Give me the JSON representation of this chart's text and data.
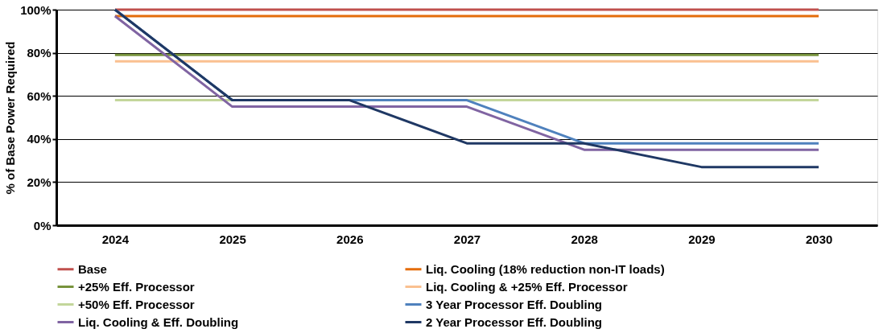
{
  "chart_data": {
    "type": "line",
    "ylabel": "% of Base Power Required",
    "categories": [
      "2024",
      "2025",
      "2026",
      "2027",
      "2028",
      "2029",
      "2030"
    ],
    "ylim": [
      0,
      100
    ],
    "yticks": [
      {
        "value": 0,
        "label": "0%"
      },
      {
        "value": 20,
        "label": "20%"
      },
      {
        "value": 40,
        "label": "40%"
      },
      {
        "value": 60,
        "label": "60%"
      },
      {
        "value": 80,
        "label": "80%"
      },
      {
        "value": 100,
        "label": "100%"
      }
    ],
    "grid": "y",
    "legend": "bottom",
    "marker": "none",
    "line_style": "solid",
    "series": [
      {
        "name": "Base",
        "color": "#c0504d",
        "values": [
          100,
          100,
          100,
          100,
          100,
          100,
          100
        ]
      },
      {
        "name": "Liq. Cooling (18% reduction non-IT loads)",
        "color": "#e46c0a",
        "values": [
          97,
          97,
          97,
          97,
          97,
          97,
          97
        ]
      },
      {
        "name": "+25% Eff. Processor",
        "color": "#77933c",
        "values": [
          79,
          79,
          79,
          79,
          79,
          79,
          79
        ]
      },
      {
        "name": "Liq. Cooling & +25% Eff. Processor",
        "color": "#fac090",
        "values": [
          76,
          76,
          76,
          76,
          76,
          76,
          76
        ]
      },
      {
        "name": "+50% Eff. Processor",
        "color": "#c3d69b",
        "values": [
          58,
          58,
          58,
          58,
          58,
          58,
          58
        ]
      },
      {
        "name": "3 Year Processor Eff. Doubling",
        "color": "#4f81bd",
        "values": [
          100,
          58,
          58,
          58,
          38,
          38,
          38
        ]
      },
      {
        "name": "Liq. Cooling & Eff. Doubling",
        "color": "#8064a2",
        "values": [
          97,
          55,
          55,
          55,
          35,
          35,
          35
        ]
      },
      {
        "name": "2 Year Processor Eff. Doubling",
        "color": "#1f3864",
        "values": [
          100,
          58,
          58,
          38,
          38,
          27,
          27
        ]
      }
    ]
  }
}
